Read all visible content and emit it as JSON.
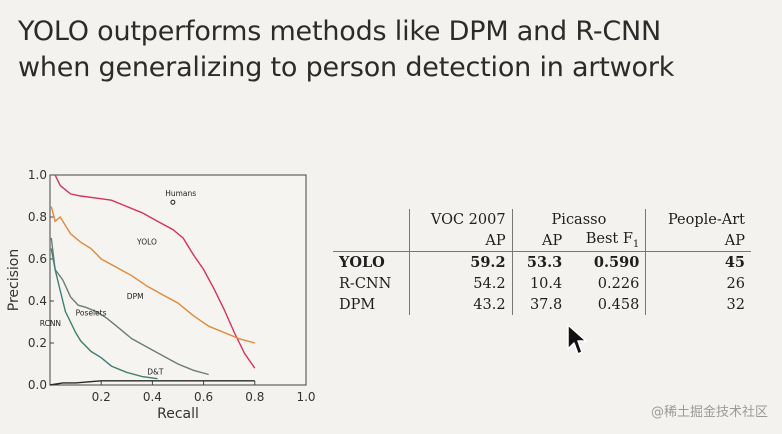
{
  "slide": {
    "title_line1": "YOLO outperforms methods like DPM and R-CNN",
    "title_line2": "when generalizing to person detection in artwork"
  },
  "chart_data": {
    "type": "line",
    "xlabel": "Recall",
    "ylabel": "Precision",
    "xlim": [
      0,
      1
    ],
    "ylim": [
      0,
      1
    ],
    "x_ticks": [
      "0.2",
      "0.4",
      "0.6",
      "0.8",
      "1.0"
    ],
    "y_ticks": [
      "0.0",
      "0.2",
      "0.4",
      "0.6",
      "0.8",
      "1.0"
    ],
    "grid": false,
    "series": [
      {
        "name": "YOLO",
        "color": "#d7335a",
        "x": [
          0.02,
          0.04,
          0.08,
          0.12,
          0.18,
          0.24,
          0.3,
          0.36,
          0.42,
          0.48,
          0.52,
          0.56,
          0.6,
          0.64,
          0.68,
          0.72,
          0.76,
          0.8
        ],
        "y": [
          1.0,
          0.95,
          0.91,
          0.9,
          0.89,
          0.88,
          0.85,
          0.82,
          0.78,
          0.74,
          0.7,
          0.62,
          0.55,
          0.46,
          0.36,
          0.25,
          0.15,
          0.08
        ]
      },
      {
        "name": "DPM",
        "color": "#e08a3c",
        "x": [
          0.005,
          0.02,
          0.04,
          0.08,
          0.12,
          0.16,
          0.2,
          0.26,
          0.32,
          0.38,
          0.44,
          0.5,
          0.56,
          0.62,
          0.68,
          0.74,
          0.8
        ],
        "y": [
          0.85,
          0.78,
          0.8,
          0.72,
          0.68,
          0.65,
          0.6,
          0.56,
          0.52,
          0.47,
          0.43,
          0.39,
          0.33,
          0.28,
          0.25,
          0.22,
          0.2
        ]
      },
      {
        "name": "Poselets",
        "color": "#6b7d78",
        "x": [
          0.005,
          0.02,
          0.05,
          0.08,
          0.11,
          0.14,
          0.18,
          0.22,
          0.26,
          0.32,
          0.38,
          0.44,
          0.5,
          0.56,
          0.62
        ],
        "y": [
          0.7,
          0.55,
          0.5,
          0.42,
          0.38,
          0.37,
          0.35,
          0.32,
          0.28,
          0.22,
          0.18,
          0.14,
          0.1,
          0.07,
          0.05
        ]
      },
      {
        "name": "R-CNN",
        "color": "#3f7f72",
        "x": [
          0.005,
          0.02,
          0.04,
          0.06,
          0.08,
          0.1,
          0.12,
          0.16,
          0.2,
          0.24,
          0.3,
          0.36,
          0.42
        ],
        "y": [
          0.65,
          0.55,
          0.45,
          0.35,
          0.3,
          0.25,
          0.21,
          0.16,
          0.13,
          0.09,
          0.06,
          0.04,
          0.03
        ]
      },
      {
        "name": "D&T",
        "color": "#2a2a2a",
        "x": [
          0.0,
          0.05,
          0.1,
          0.2,
          0.3,
          0.4,
          0.5,
          0.6,
          0.7,
          0.8
        ],
        "y": [
          0.0,
          0.01,
          0.01,
          0.02,
          0.02,
          0.02,
          0.02,
          0.02,
          0.02,
          0.02
        ]
      }
    ],
    "points": [
      {
        "name": "Humans",
        "x": 0.48,
        "y": 0.87
      }
    ],
    "annotations": [
      {
        "text": "Humans",
        "x": 0.45,
        "y": 0.9
      },
      {
        "text": "YOLO",
        "x": 0.34,
        "y": 0.67
      },
      {
        "text": "DPM",
        "x": 0.3,
        "y": 0.41
      },
      {
        "text": "Poselets",
        "x": 0.1,
        "y": 0.33
      },
      {
        "text": "RCNN",
        "x": -0.04,
        "y": 0.28
      },
      {
        "text": "D&T",
        "x": 0.38,
        "y": 0.05
      }
    ]
  },
  "table": {
    "group_headers": [
      "VOC 2007",
      "Picasso",
      "People-Art"
    ],
    "sub_headers": [
      "AP",
      "AP",
      "Best F",
      "1",
      "AP"
    ],
    "rows": [
      {
        "method": "YOLO",
        "voc_ap": "59.2",
        "picasso_ap": "53.3",
        "picasso_f1": "0.590",
        "peopleart_ap": "45"
      },
      {
        "method": "R-CNN",
        "voc_ap": "54.2",
        "picasso_ap": "10.4",
        "picasso_f1": "0.226",
        "peopleart_ap": "26"
      },
      {
        "method": "DPM",
        "voc_ap": "43.2",
        "picasso_ap": "37.8",
        "picasso_f1": "0.458",
        "peopleart_ap": "32"
      }
    ]
  },
  "watermark": "@稀土掘金技术社区"
}
